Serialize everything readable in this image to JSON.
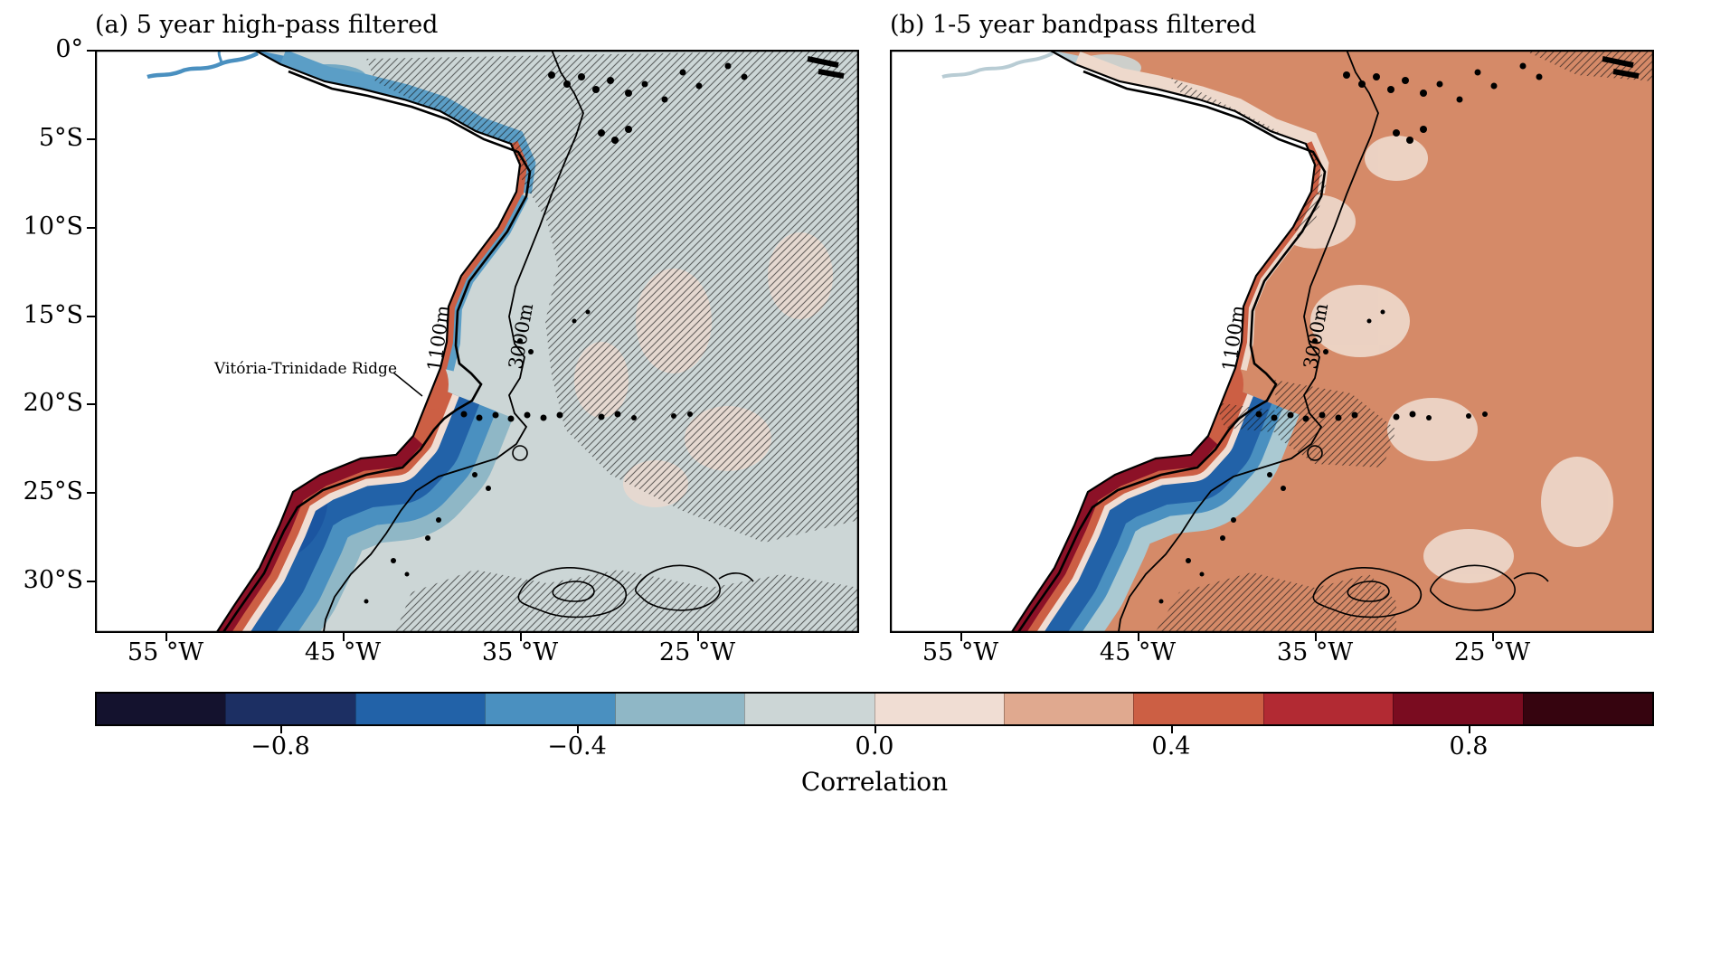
{
  "figure": {
    "panel_a": {
      "title": "(a) 5 year high-pass filtered",
      "contour_1100": "1100m",
      "contour_3000": "3000m",
      "annotation": "Vitória-Trinidade Ridge"
    },
    "panel_b": {
      "title": "(b) 1-5 year bandpass filtered",
      "contour_1100": "1100m",
      "contour_3000": "3000m"
    },
    "lat_ticks": [
      "0°",
      "5°S",
      "10°S",
      "15°S",
      "20°S",
      "25°S",
      "30°S"
    ],
    "lon_ticks": [
      "55 °W",
      "45 °W",
      "35 °W",
      "25 °W"
    ],
    "colorbar": {
      "label": "Correlation",
      "tick_labels": [
        "−0.8",
        "−0.4",
        "0.0",
        "0.4",
        "0.8"
      ],
      "colors": [
        "#14122e",
        "#1c2f63",
        "#2262a8",
        "#4a90c0",
        "#8fb7c6",
        "#ccd6d6",
        "#f0ddd3",
        "#e0a98f",
        "#cc5f44",
        "#b22a33",
        "#7a0c20",
        "#36040f"
      ]
    }
  },
  "chart_data": [
    {
      "type": "heatmap",
      "title": "(a) 5 year high-pass filtered",
      "x_tick_labels": [
        "55 °W",
        "45 °W",
        "35 °W",
        "25 °W"
      ],
      "y_tick_labels": [
        "0°",
        "5°S",
        "10°S",
        "15°S",
        "20°S",
        "25°S",
        "30°S"
      ],
      "value_name": "Correlation",
      "colorbar_ticks": [
        -0.8,
        -0.4,
        0.0,
        0.4,
        0.8
      ],
      "colorbar_levels": 12,
      "bathymetry_contours_m": [
        1100,
        3000
      ],
      "annotation": "Vitória-Trinidade Ridge",
      "estimated_field": [
        {
          "region": "open ocean interior (hatched)",
          "correlation": -0.1
        },
        {
          "region": "inner shelf strip south of 20°S",
          "correlation": 0.9
        },
        {
          "region": "band seaward of 1100 m isobath, 20-33°S",
          "correlation": -0.7
        },
        {
          "region": "coastal patch at Vitória-Trinidade Ridge ~19-20°S",
          "correlation": 0.5
        },
        {
          "region": "thin coastal strip 5-17°S",
          "correlation": 0.4
        },
        {
          "region": "Amazon shelf near equator",
          "correlation": -0.5
        }
      ]
    },
    {
      "type": "heatmap",
      "title": "(b) 1-5 year bandpass filtered",
      "x_tick_labels": [
        "55 °W",
        "45 °W",
        "35 °W",
        "25 °W"
      ],
      "y_tick_labels": [
        "0°",
        "5°S",
        "10°S",
        "15°S",
        "20°S",
        "25°S",
        "30°S"
      ],
      "value_name": "Correlation",
      "colorbar_ticks": [
        -0.8,
        -0.4,
        0.0,
        0.4,
        0.8
      ],
      "colorbar_levels": 12,
      "bathymetry_contours_m": [
        1100,
        3000
      ],
      "estimated_field": [
        {
          "region": "open ocean interior",
          "correlation": 0.35
        },
        {
          "region": "inner shelf strip south of 20°S",
          "correlation": 0.9
        },
        {
          "region": "band seaward of 1100 m isobath, 20-33°S",
          "correlation": -0.6
        },
        {
          "region": "patches east of 3000 m isobath, 10-25°S (hatched)",
          "correlation": 0.1
        },
        {
          "region": "Amazon shelf near equator",
          "correlation": -0.05
        }
      ]
    }
  ]
}
